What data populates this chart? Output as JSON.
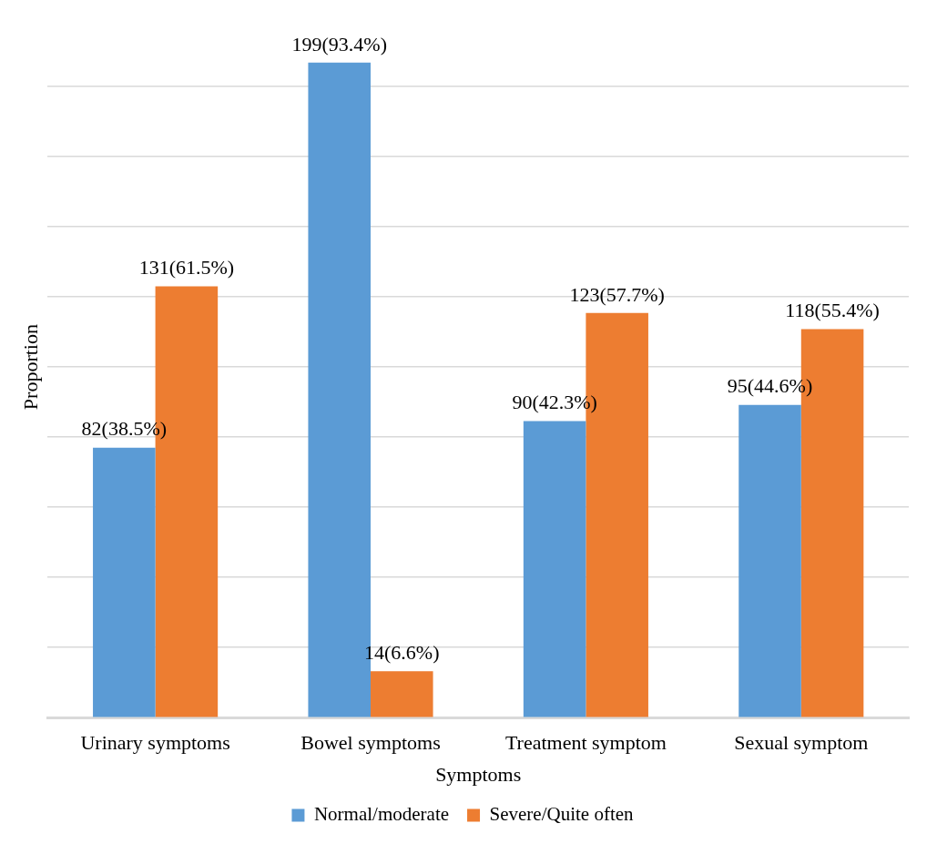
{
  "chart_data": {
    "type": "bar",
    "xlabel": "Symptoms",
    "ylabel": "Proportion",
    "categories": [
      "Urinary symptoms",
      "Bowel symptoms",
      "Treatment symptom",
      "Sexual symptom"
    ],
    "series": [
      {
        "name": "Normal/moderate",
        "color": "#5b9bd5",
        "values": [
          38.5,
          93.4,
          42.3,
          44.6
        ],
        "value_labels": [
          "82(38.5%)",
          "199(93.4%)",
          "90(42.3%)",
          "95(44.6%)"
        ]
      },
      {
        "name": "Severe/Quite often",
        "color": "#ed7d31",
        "values": [
          61.5,
          6.6,
          57.7,
          55.4
        ],
        "value_labels": [
          "131(61.5%)",
          "14(6.6%)",
          "123(57.7%)",
          "118(55.4%)"
        ]
      }
    ],
    "yticks": [
      {
        "value": 0,
        "label": null
      },
      {
        "value": 10,
        "label": null
      },
      {
        "value": 20,
        "label": null
      },
      {
        "value": 30,
        "label": null
      },
      {
        "value": 40,
        "label": null
      },
      {
        "value": 50,
        "label": null
      },
      {
        "value": 60,
        "label": null
      },
      {
        "value": 70,
        "label": null
      },
      {
        "value": 80,
        "label": null
      },
      {
        "value": 90,
        "label": null
      }
    ],
    "tick_labels": "x",
    "grid": "y",
    "legend": "bottom"
  }
}
